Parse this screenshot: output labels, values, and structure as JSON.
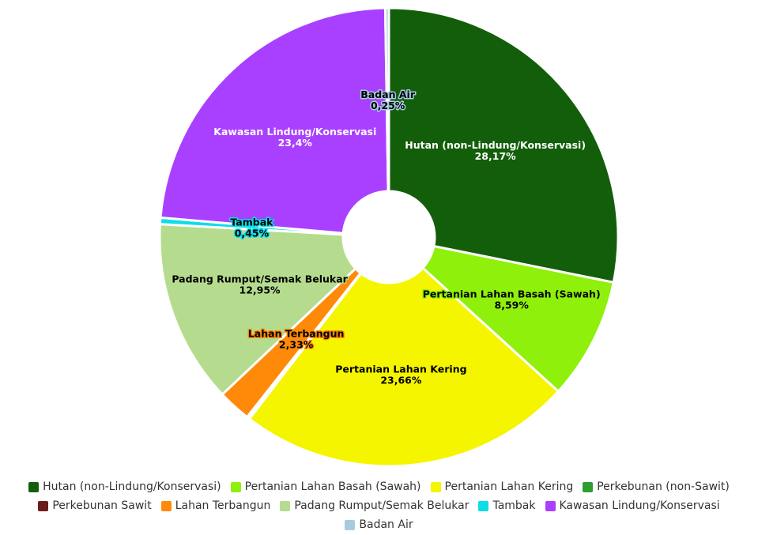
{
  "chart_data": {
    "type": "pie",
    "donut": true,
    "legend": "bottom",
    "categories": [
      "Hutan (non-Lindung/Konservasi)",
      "Pertanian Lahan Basah (Sawah)",
      "Pertanian Lahan Kering",
      "Perkebunan (non-Sawit)",
      "Perkebunan Sawit",
      "Lahan Terbangun",
      "Padang Rumput/Semak Belukar",
      "Tambak",
      "Kawasan Lindung/Konservasi",
      "Badan Air"
    ],
    "values": [
      28.17,
      8.59,
      23.66,
      0.15,
      0.05,
      2.33,
      12.95,
      0.45,
      23.4,
      0.25
    ],
    "value_labels": [
      "28,17%",
      "8,59%",
      "23,66%",
      null,
      null,
      "2,33%",
      "12,95%",
      "0,45%",
      "23,4%",
      "0,25%"
    ],
    "colors": [
      "#135e0b",
      "#8ff00c",
      "#f5f500",
      "#2e9e2e",
      "#6b1c1c",
      "#ff8a0a",
      "#b5dc8e",
      "#0ddde8",
      "#aa40ff",
      "#a6cbe0"
    ]
  }
}
